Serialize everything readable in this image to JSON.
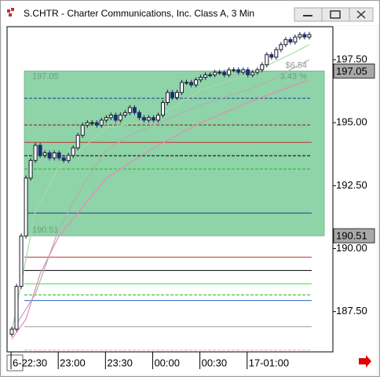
{
  "window": {
    "title": "S.CHTR - Charter Communications, Inc. Class A, 3 Min"
  },
  "chart_data": {
    "type": "candlestick",
    "open": [
      186.6,
      186.8,
      188.5,
      190.5,
      192.8,
      193.5,
      194.1,
      193.7,
      193.8,
      193.6,
      193.8,
      193.6,
      193.5,
      193.7,
      194.0,
      194.5,
      194.9,
      195.0,
      195.0,
      194.9,
      195.1,
      195.2,
      195.3,
      195.1,
      195.3,
      195.4,
      195.6,
      195.4,
      195.2,
      195.1,
      195.2,
      195.1,
      195.3,
      195.8,
      196.2,
      196.0,
      196.2,
      196.6,
      196.6,
      196.5,
      196.7,
      196.8,
      196.9,
      196.9,
      197.0,
      197.0,
      196.9,
      197.1,
      197.1,
      197.0,
      197.1,
      196.9,
      197.0,
      197.1,
      197.3,
      197.7,
      197.6,
      197.9,
      198.1,
      198.3,
      198.2,
      198.4,
      198.5,
      198.4
    ],
    "high": [
      186.9,
      188.6,
      190.6,
      192.9,
      193.6,
      194.2,
      194.2,
      193.9,
      193.9,
      193.9,
      193.9,
      193.7,
      193.8,
      194.1,
      194.6,
      195.0,
      195.1,
      195.1,
      195.1,
      195.2,
      195.3,
      195.4,
      195.4,
      195.4,
      195.5,
      195.7,
      195.7,
      195.5,
      195.3,
      195.3,
      195.3,
      195.4,
      195.9,
      196.3,
      196.3,
      196.3,
      196.7,
      196.7,
      196.7,
      196.8,
      196.9,
      197.0,
      197.0,
      197.1,
      197.1,
      197.1,
      197.2,
      197.2,
      197.2,
      197.2,
      197.2,
      197.1,
      197.2,
      197.4,
      197.8,
      197.8,
      198.0,
      198.2,
      198.4,
      198.4,
      198.5,
      198.6,
      198.6,
      198.6
    ],
    "low": [
      186.5,
      186.7,
      188.4,
      190.4,
      192.7,
      193.4,
      193.6,
      193.6,
      193.5,
      193.5,
      193.5,
      193.4,
      193.4,
      193.6,
      193.9,
      194.4,
      194.8,
      194.9,
      194.8,
      194.8,
      195.0,
      195.1,
      195.0,
      195.0,
      195.2,
      195.3,
      195.3,
      195.1,
      195.0,
      195.0,
      195.0,
      195.0,
      195.2,
      195.7,
      195.9,
      195.9,
      196.1,
      196.5,
      196.4,
      196.4,
      196.6,
      196.7,
      196.8,
      196.8,
      196.9,
      196.8,
      196.8,
      197.0,
      196.9,
      196.9,
      196.8,
      196.8,
      196.9,
      197.0,
      197.2,
      197.5,
      197.5,
      197.8,
      198.0,
      198.1,
      198.1,
      198.3,
      198.3,
      198.3
    ],
    "close": [
      186.8,
      188.5,
      190.5,
      192.8,
      193.5,
      194.1,
      193.7,
      193.8,
      193.6,
      193.8,
      193.6,
      193.5,
      193.7,
      194.0,
      194.5,
      194.9,
      195.0,
      195.0,
      194.9,
      195.1,
      195.2,
      195.3,
      195.1,
      195.3,
      195.4,
      195.6,
      195.4,
      195.2,
      195.1,
      195.2,
      195.1,
      195.3,
      195.8,
      196.2,
      196.0,
      196.2,
      196.6,
      196.6,
      196.5,
      196.7,
      196.8,
      196.9,
      196.9,
      197.0,
      197.0,
      196.9,
      197.1,
      197.1,
      197.0,
      197.1,
      196.9,
      197.0,
      197.1,
      197.3,
      197.7,
      197.6,
      197.9,
      198.1,
      198.3,
      198.2,
      198.4,
      198.5,
      198.4,
      198.5
    ],
    "up_color": "#1a1a2e",
    "down_color": "#1f2f6b",
    "lines": [
      {
        "color": "#b0b0b0",
        "x": [
          0,
          5,
          10,
          15,
          20,
          25,
          30,
          35,
          40,
          45,
          50,
          55,
          60,
          63
        ],
        "values": [
          186.7,
          188.2,
          190.8,
          192.5,
          193.9,
          194.5,
          194.9,
          195.3,
          195.7,
          196.0,
          196.3,
          196.7,
          197.2,
          197.5
        ]
      },
      {
        "color": "#e58ab8",
        "x": [
          0,
          3,
          6,
          10,
          20,
          30,
          40,
          50,
          60,
          63
        ],
        "values": [
          186.4,
          187.2,
          189.0,
          190.5,
          192.8,
          194.0,
          195.0,
          195.8,
          196.5,
          196.7
        ]
      },
      {
        "color": "#a8d8a8",
        "x": [
          0,
          5,
          10,
          20,
          30,
          40,
          50,
          60,
          63
        ],
        "values": [
          186.7,
          191.5,
          193.2,
          194.8,
          195.1,
          196.3,
          196.9,
          197.8,
          198.1
        ]
      }
    ],
    "zone": {
      "high": 197.05,
      "low": 190.51,
      "color": "#8fd3a8"
    },
    "change": {
      "value": 6.54,
      "label": "$6.54"
    },
    "change_pct": {
      "value": 3.43,
      "label": "3.43 %"
    },
    "levels": [
      {
        "value": 195.97,
        "color": "#1f3d99",
        "dashed": true
      },
      {
        "value": 194.91,
        "color": "#8b1a1a",
        "dashed": true
      },
      {
        "value": 194.22,
        "color": "#c03030",
        "dashed": false
      },
      {
        "value": 193.69,
        "color": "#000000",
        "dashed": true
      },
      {
        "value": 193.16,
        "color": "#22bb22",
        "dashed": true
      },
      {
        "value": 191.41,
        "color": "#1f3d99",
        "dashed": false
      },
      {
        "value": 189.66,
        "color": "#c03030",
        "dashed": false
      },
      {
        "value": 189.13,
        "color": "#000000",
        "dashed": false
      },
      {
        "value": 188.6,
        "color": "#44dd44",
        "dashed": false
      },
      {
        "value": 188.16,
        "color": "#22bb22",
        "dashed": true
      },
      {
        "value": 187.94,
        "color": "#3060c0",
        "dashed": false
      },
      {
        "value": 186.9,
        "color": "#999999",
        "dashed": false
      },
      {
        "value": 185.97,
        "color": "#f0b0c8",
        "dashed": true
      }
    ],
    "xlim": [
      -1,
      68
    ],
    "xticks": [
      {
        "value": 1,
        "label": "6-22:30"
      },
      {
        "value": 11,
        "label": "23:00"
      },
      {
        "value": 21,
        "label": "23:30"
      },
      {
        "value": 31,
        "label": "00:00"
      },
      {
        "value": 41,
        "label": "00:30"
      },
      {
        "value": 51,
        "label": "17-01:00"
      }
    ],
    "ylim": [
      185.9,
      198.81
    ],
    "yticks": [
      {
        "value": 187.5,
        "label": "187.50"
      },
      {
        "value": 190,
        "label": "190.00"
      },
      {
        "value": 192.5,
        "label": "192.50"
      },
      {
        "value": 195,
        "label": "195.00"
      },
      {
        "value": 197.5,
        "label": "197.50"
      }
    ]
  }
}
